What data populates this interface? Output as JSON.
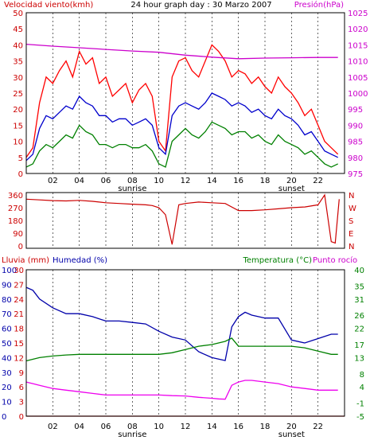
{
  "page": {
    "title": "24 hour graph day : 30 Marzo 2007"
  },
  "colors": {
    "frame": "#000000",
    "grid": "#000000",
    "wind_gust": "#ff0000",
    "wind_avg": "#0000cc",
    "wind_min": "#008000",
    "pressure": "#cc00cc",
    "direction": "#cc0000",
    "rain": "#cc0000",
    "humidity": "#0000aa",
    "temperature": "#008000",
    "dewpoint": "#ee00ee",
    "label_left": "#cc0000",
    "label_right": "#cc00cc",
    "label_humidity": "#0000aa",
    "label_temp": "#008000",
    "label_dew": "#cc00cc",
    "direction_letters": "#cc0000"
  },
  "x_axis": {
    "tick_labels": [
      "02",
      "04",
      "06",
      "08",
      "10",
      "12",
      "14",
      "16",
      "18",
      "20",
      "22"
    ],
    "tick_hours": [
      2,
      4,
      6,
      8,
      10,
      12,
      14,
      16,
      18,
      20,
      22
    ],
    "hour_range": [
      0,
      24
    ],
    "sunrise_label": "sunrise",
    "sunset_label": "sunset",
    "sunrise_hour": 8,
    "sunset_hour": 20
  },
  "chart_data": [
    {
      "type": "line",
      "title": "24 hour graph day : 30 Marzo 2007",
      "ylabel": "Velocidad viento(kmh)",
      "ylabel_right": "Presión(hPa)",
      "ylim": [
        0,
        50
      ],
      "yticks": [
        0,
        5,
        10,
        15,
        20,
        25,
        30,
        35,
        40,
        45,
        50
      ],
      "ylim_right": [
        975,
        1025
      ],
      "yticks_right": [
        975,
        980,
        985,
        990,
        995,
        1000,
        1005,
        1010,
        1015,
        1020,
        1025
      ],
      "grid": "vertical",
      "series": [
        {
          "key": "gust",
          "axis": "left",
          "x": [
            0,
            0.5,
            1,
            1.5,
            2,
            2.5,
            3,
            3.5,
            4,
            4.5,
            5,
            5.5,
            6,
            6.5,
            7,
            7.5,
            8,
            8.5,
            9,
            9.5,
            10,
            10.5,
            11,
            11.5,
            12,
            12.5,
            13,
            13.5,
            14,
            14.5,
            15,
            15.5,
            16,
            16.5,
            17,
            17.5,
            18,
            18.5,
            19,
            19.5,
            20,
            20.5,
            21,
            21.5,
            22,
            22.5,
            23,
            23.5
          ],
          "values": [
            5,
            8,
            22,
            30,
            28,
            32,
            35,
            30,
            38,
            34,
            36,
            28,
            30,
            24,
            26,
            28,
            22,
            26,
            28,
            24,
            10,
            7,
            30,
            35,
            36,
            32,
            30,
            35,
            40,
            38,
            35,
            30,
            32,
            31,
            28,
            30,
            27,
            25,
            30,
            27,
            25,
            22,
            18,
            20,
            15,
            10,
            8,
            6
          ]
        },
        {
          "key": "average",
          "axis": "left",
          "x": [
            0,
            0.5,
            1,
            1.5,
            2,
            2.5,
            3,
            3.5,
            4,
            4.5,
            5,
            5.5,
            6,
            6.5,
            7,
            7.5,
            8,
            8.5,
            9,
            9.5,
            10,
            10.5,
            11,
            11.5,
            12,
            12.5,
            13,
            13.5,
            14,
            14.5,
            15,
            15.5,
            16,
            16.5,
            17,
            17.5,
            18,
            18.5,
            19,
            19.5,
            20,
            20.5,
            21,
            21.5,
            22,
            22.5,
            23,
            23.5
          ],
          "values": [
            4,
            6,
            14,
            18,
            17,
            19,
            21,
            20,
            24,
            22,
            21,
            18,
            18,
            16,
            17,
            17,
            15,
            16,
            17,
            15,
            8,
            6,
            18,
            21,
            22,
            21,
            20,
            22,
            25,
            24,
            23,
            21,
            22,
            21,
            19,
            20,
            18,
            17,
            20,
            18,
            17,
            15,
            12,
            13,
            10,
            7,
            6,
            5
          ]
        },
        {
          "key": "minimum",
          "axis": "left",
          "x": [
            0,
            0.5,
            1,
            1.5,
            2,
            2.5,
            3,
            3.5,
            4,
            4.5,
            5,
            5.5,
            6,
            6.5,
            7,
            7.5,
            8,
            8.5,
            9,
            9.5,
            10,
            10.5,
            11,
            11.5,
            12,
            12.5,
            13,
            13.5,
            14,
            14.5,
            15,
            15.5,
            16,
            16.5,
            17,
            17.5,
            18,
            18.5,
            19,
            19.5,
            20,
            20.5,
            21,
            21.5,
            22,
            22.5,
            23,
            23.5
          ],
          "values": [
            2,
            3,
            7,
            9,
            8,
            10,
            12,
            11,
            15,
            13,
            12,
            9,
            9,
            8,
            9,
            9,
            8,
            8,
            9,
            7,
            3,
            2,
            10,
            12,
            14,
            12,
            11,
            13,
            16,
            15,
            14,
            12,
            13,
            13,
            11,
            12,
            10,
            9,
            12,
            10,
            9,
            8,
            6,
            7,
            5,
            3,
            2,
            3
          ]
        },
        {
          "key": "pressure",
          "axis": "right",
          "x": [
            0,
            2,
            4,
            6,
            8,
            10,
            12,
            14,
            16,
            18,
            20,
            22,
            23.5
          ],
          "values": [
            1015.2,
            1014.6,
            1014.1,
            1013.6,
            1013.1,
            1012.7,
            1011.8,
            1011.2,
            1010.7,
            1010.9,
            1011.0,
            1011.1,
            1011.1
          ]
        }
      ]
    },
    {
      "type": "line",
      "ylabel": "",
      "ylim": [
        0,
        360
      ],
      "yticks": [
        0,
        90,
        180,
        270,
        360
      ],
      "right_labels": [
        "N",
        "W",
        "S",
        "E",
        "N"
      ],
      "grid": "vertical",
      "series": [
        {
          "key": "direction",
          "x": [
            0,
            1,
            2,
            3,
            4,
            5,
            6,
            7,
            8,
            9,
            9.5,
            10,
            10.5,
            11,
            11.5,
            12,
            13,
            14,
            15,
            16,
            17,
            18,
            19,
            20,
            21,
            22,
            22.5,
            23,
            23.3,
            23.6
          ],
          "values": [
            330,
            325,
            320,
            318,
            322,
            315,
            305,
            300,
            295,
            290,
            285,
            270,
            220,
            10,
            290,
            300,
            310,
            305,
            300,
            250,
            250,
            255,
            262,
            270,
            275,
            290,
            360,
            30,
            20,
            330
          ]
        }
      ]
    },
    {
      "type": "line",
      "ylabel": "Lluvia (mm)",
      "ylabel_2": "Humedad (%)",
      "ylabel_right": "Temperatura (°C)",
      "ylabel_right_2": "Punto rocío",
      "ylim_humidity": [
        0,
        100
      ],
      "yticks_humidity": [
        0,
        10,
        20,
        30,
        40,
        50,
        60,
        70,
        80,
        90,
        100
      ],
      "ylim_rain": [
        0,
        30
      ],
      "yticks_rain": [
        0,
        3,
        6,
        9,
        12,
        15,
        18,
        21,
        24,
        27,
        30
      ],
      "ylim_temp": [
        -5,
        40
      ],
      "yticks_temp": [
        -5,
        -1,
        4,
        8,
        13,
        17,
        22,
        26,
        31,
        35,
        40
      ],
      "grid": "vertical",
      "series": [
        {
          "key": "rain",
          "axis": "rain",
          "x": [
            0,
            24
          ],
          "values": [
            0,
            0
          ]
        },
        {
          "key": "humidity",
          "axis": "humidity",
          "x": [
            0,
            0.5,
            1,
            2,
            3,
            4,
            5,
            6,
            7,
            8,
            9,
            10,
            11,
            12,
            13,
            14,
            14.5,
            15,
            15.5,
            16,
            16.5,
            17,
            18,
            19,
            20,
            21,
            22,
            23,
            23.5
          ],
          "values": [
            88,
            86,
            80,
            74,
            70,
            70,
            68,
            65,
            65,
            64,
            63,
            58,
            54,
            52,
            44,
            40,
            39,
            38,
            61,
            68,
            71,
            69,
            67,
            67,
            52,
            50,
            53,
            56,
            56
          ]
        },
        {
          "key": "temperature",
          "axis": "temp",
          "x": [
            0,
            1,
            2,
            3,
            4,
            6,
            8,
            10,
            11,
            12,
            13,
            14,
            15,
            15.5,
            16,
            17,
            18,
            19,
            20,
            21,
            22,
            23,
            23.5
          ],
          "values": [
            12,
            13,
            13.5,
            13.8,
            14,
            14,
            14,
            14,
            14.5,
            15.5,
            16.5,
            17,
            18,
            19,
            16.5,
            16.5,
            16.5,
            16.5,
            16.5,
            16,
            15,
            14,
            14
          ]
        },
        {
          "key": "dewpoint",
          "axis": "temp",
          "x": [
            0,
            0.5,
            1,
            2,
            3,
            4,
            5,
            6,
            7,
            8,
            9,
            10,
            11,
            12,
            13,
            14,
            14.5,
            15,
            15.5,
            16,
            16.5,
            17,
            18,
            19,
            20,
            21,
            22,
            23,
            23.5
          ],
          "values": [
            5.5,
            5,
            4.5,
            3.5,
            3,
            2.5,
            2,
            1.5,
            1.5,
            1.5,
            1.5,
            1.5,
            1.3,
            1.2,
            0.8,
            0.5,
            0.3,
            0.2,
            4.5,
            5.5,
            6,
            6,
            5.5,
            5,
            4,
            3.5,
            3,
            3,
            3
          ]
        }
      ]
    }
  ]
}
